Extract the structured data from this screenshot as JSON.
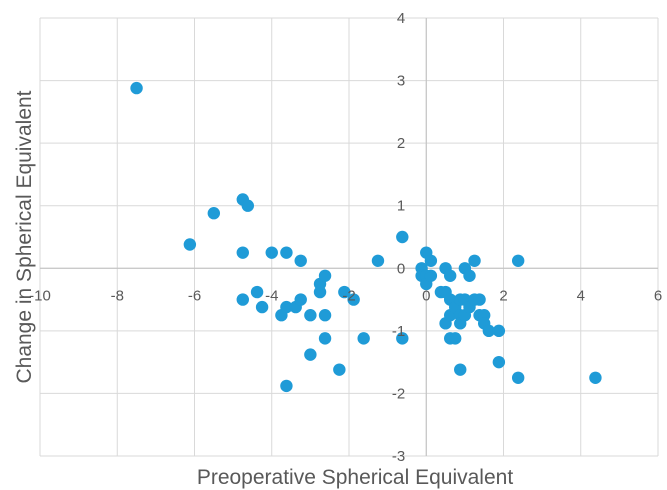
{
  "chart_data": {
    "type": "scatter",
    "xlabel": "Preoperative Spherical Equivalent",
    "ylabel": "Change in Spherical Equivalent",
    "xlim": [
      -10,
      6
    ],
    "ylim": [
      -3,
      4
    ],
    "x_ticks": [
      -10,
      -8,
      -6,
      -4,
      -2,
      0,
      2,
      4,
      6
    ],
    "y_ticks": [
      -3,
      -2,
      -1,
      0,
      1,
      2,
      3,
      4
    ],
    "grid": true,
    "legend": "none",
    "marker_color": "#1f9bd7",
    "grid_color": "#d9d9d9",
    "series": [
      {
        "points": [
          {
            "x": -7.5,
            "y": 2.88
          },
          {
            "x": -6.12,
            "y": 0.38
          },
          {
            "x": -5.5,
            "y": 0.88
          },
          {
            "x": -4.75,
            "y": 1.1
          },
          {
            "x": -4.62,
            "y": 1.0
          },
          {
            "x": -4.75,
            "y": 0.25
          },
          {
            "x": -4.75,
            "y": -0.5
          },
          {
            "x": -4.38,
            "y": -0.38
          },
          {
            "x": -4.25,
            "y": -0.62
          },
          {
            "x": -4.0,
            "y": 0.25
          },
          {
            "x": -3.75,
            "y": -0.75
          },
          {
            "x": -3.62,
            "y": 0.25
          },
          {
            "x": -3.62,
            "y": -0.62
          },
          {
            "x": -3.62,
            "y": -1.88
          },
          {
            "x": -3.38,
            "y": -0.62
          },
          {
            "x": -3.25,
            "y": 0.12
          },
          {
            "x": -3.25,
            "y": -0.5
          },
          {
            "x": -3.0,
            "y": -0.75
          },
          {
            "x": -3.0,
            "y": -1.38
          },
          {
            "x": -2.75,
            "y": -0.38
          },
          {
            "x": -2.75,
            "y": -0.25
          },
          {
            "x": -2.62,
            "y": -0.12
          },
          {
            "x": -2.62,
            "y": -0.75
          },
          {
            "x": -2.62,
            "y": -1.12
          },
          {
            "x": -2.25,
            "y": -1.62
          },
          {
            "x": -2.12,
            "y": -0.38
          },
          {
            "x": -1.88,
            "y": -0.5
          },
          {
            "x": -1.62,
            "y": -1.12
          },
          {
            "x": -1.25,
            "y": 0.12
          },
          {
            "x": -0.62,
            "y": 0.5
          },
          {
            "x": -0.62,
            "y": -1.12
          },
          {
            "x": -0.12,
            "y": 0.0
          },
          {
            "x": -0.12,
            "y": -0.12
          },
          {
            "x": 0.0,
            "y": 0.25
          },
          {
            "x": 0.0,
            "y": -0.12
          },
          {
            "x": 0.0,
            "y": -0.25
          },
          {
            "x": 0.12,
            "y": 0.12
          },
          {
            "x": 0.12,
            "y": -0.12
          },
          {
            "x": 0.38,
            "y": -0.38
          },
          {
            "x": 0.5,
            "y": 0.0
          },
          {
            "x": 0.5,
            "y": -0.38
          },
          {
            "x": 0.5,
            "y": -0.88
          },
          {
            "x": 0.62,
            "y": -0.12
          },
          {
            "x": 0.62,
            "y": -0.5
          },
          {
            "x": 0.62,
            "y": -0.75
          },
          {
            "x": 0.62,
            "y": -1.12
          },
          {
            "x": 0.75,
            "y": -0.62
          },
          {
            "x": 0.75,
            "y": -1.12
          },
          {
            "x": 0.88,
            "y": -0.5
          },
          {
            "x": 0.88,
            "y": -0.75
          },
          {
            "x": 0.88,
            "y": -0.88
          },
          {
            "x": 0.88,
            "y": -1.62
          },
          {
            "x": 1.0,
            "y": 0.0
          },
          {
            "x": 1.0,
            "y": -0.5
          },
          {
            "x": 1.0,
            "y": -0.75
          },
          {
            "x": 1.12,
            "y": -0.12
          },
          {
            "x": 1.12,
            "y": -0.62
          },
          {
            "x": 1.25,
            "y": 0.12
          },
          {
            "x": 1.25,
            "y": -0.5
          },
          {
            "x": 1.38,
            "y": -0.5
          },
          {
            "x": 1.38,
            "y": -0.75
          },
          {
            "x": 1.5,
            "y": -0.75
          },
          {
            "x": 1.5,
            "y": -0.88
          },
          {
            "x": 1.62,
            "y": -1.0
          },
          {
            "x": 1.88,
            "y": -1.0
          },
          {
            "x": 1.88,
            "y": -1.5
          },
          {
            "x": 2.38,
            "y": 0.12
          },
          {
            "x": 2.38,
            "y": -1.75
          },
          {
            "x": 4.38,
            "y": -1.75
          }
        ]
      }
    ]
  }
}
